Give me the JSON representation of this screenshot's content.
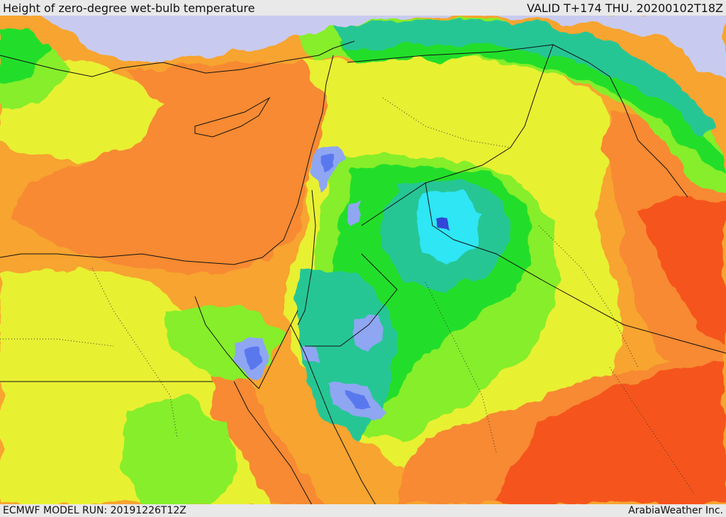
{
  "header": {
    "title": "Height of zero-degree wet-bulb temperature",
    "valid": "VALID T+174 THU. 20200102T18Z"
  },
  "footer": {
    "model_run": "ECMWF MODEL RUN: 20191226T12Z",
    "credit": "ArabiaWeather Inc."
  },
  "palette": {
    "snow_lilac": "#c8cbef",
    "deep_blue": "#3346d6",
    "medium_blue": "#5a78ee",
    "light_blue": "#8fa6f3",
    "cyan": "#2fe6f4",
    "teal": "#25c694",
    "green": "#22de2c",
    "lime": "#86ee2c",
    "yellow": "#e8f033",
    "light_orange": "#fbae26",
    "orange": "#f78a31",
    "red_orange": "#f5551c",
    "border_color": "#111111"
  }
}
